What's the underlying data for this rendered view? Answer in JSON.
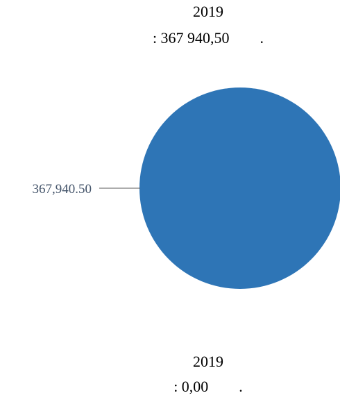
{
  "chart_data": [
    {
      "type": "pie",
      "title_lines": [
        "2019",
        ": 367 940,50        ."
      ],
      "series": [
        {
          "values": [
            367940.5
          ],
          "labels": [
            "367,940.50"
          ]
        }
      ],
      "colors": [
        "#2e75b6"
      ],
      "label_color": "#44546a"
    },
    {
      "type": "pie",
      "title_lines": [
        "2019",
        ": 0,00        ."
      ],
      "series": [
        {
          "values": [],
          "labels": []
        }
      ]
    }
  ]
}
